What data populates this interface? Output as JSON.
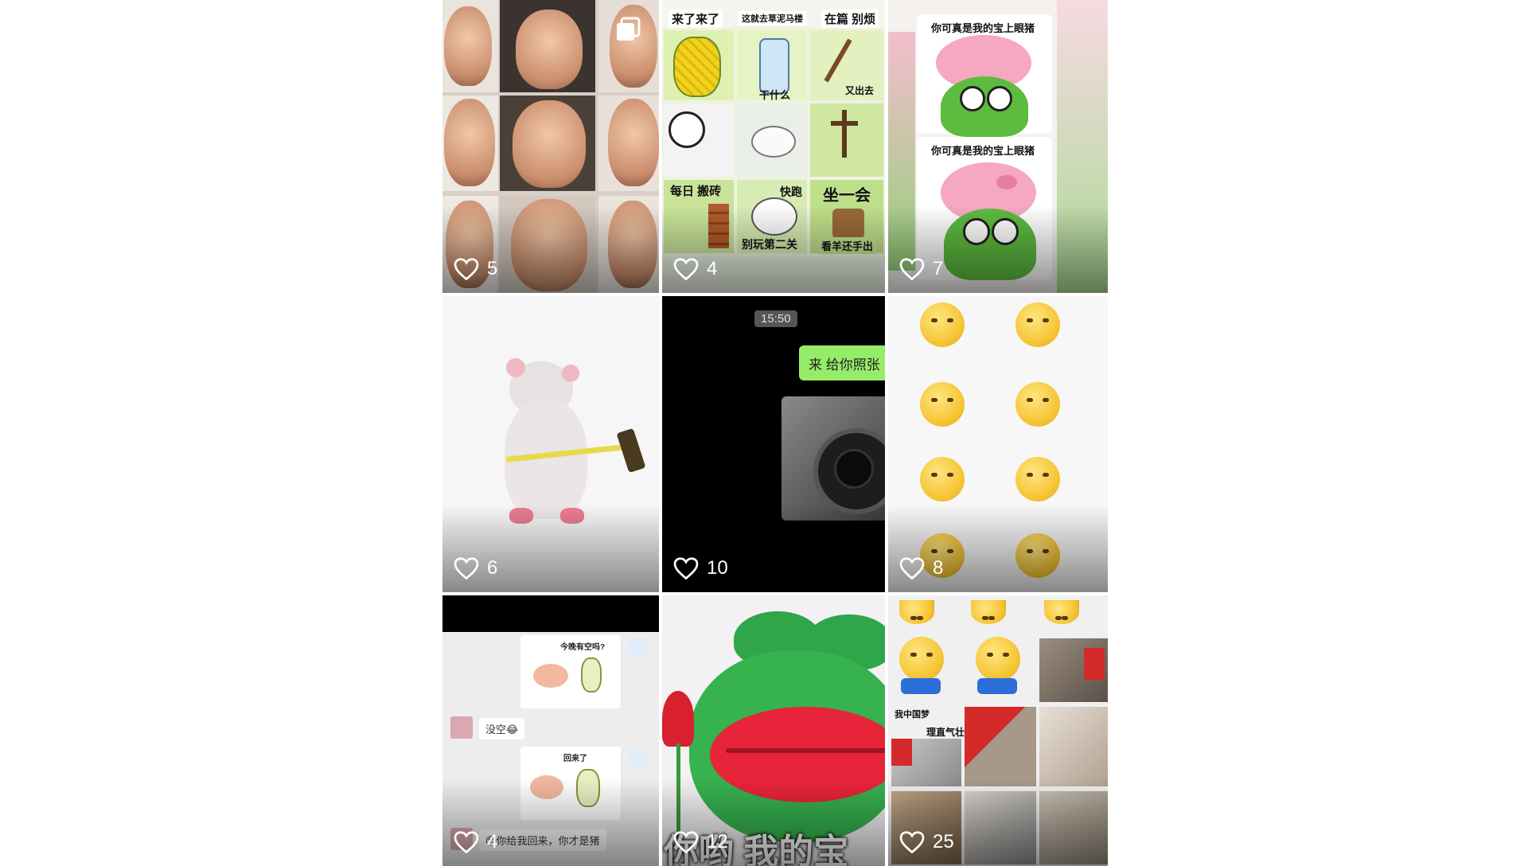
{
  "colors": {
    "heart": "#ffffff",
    "wechat_green": "#95ec69",
    "pig_pink": "#f5a8c0",
    "frog_green": "#5dbb3f",
    "emoji_yellow": "#f4c12d"
  },
  "tiles": [
    {
      "likes": "5",
      "multi_image": true
    },
    {
      "likes": "4",
      "captions": [
        "来了来了",
        "这就去草泥马楼",
        "在篇 别烦",
        "干什么",
        "又出去",
        "每日 搬砖",
        "快跑",
        "坐一会",
        "别玩第二关",
        "看羊还手出"
      ]
    },
    {
      "likes": "7",
      "captions": [
        "你可真是我的宝上眼猪",
        "你可真是我的宝上眼猪"
      ]
    },
    {
      "likes": "6"
    },
    {
      "likes": "10",
      "chat_time": "15:50",
      "chat_message": "来 给你照张"
    },
    {
      "likes": "8"
    },
    {
      "likes": "4",
      "chat_lines": [
        "今晚有空吗?",
        "没空😂",
        "回来了",
        "😊你给我回来，你才是猪"
      ]
    },
    {
      "likes": "12",
      "caption": "你哟 我的宝"
    },
    {
      "likes": "25",
      "captions": [
        "我中国梦",
        "理直气壮"
      ]
    }
  ],
  "icons": {
    "like": "heart-outline-icon",
    "multi": "multi-image-icon"
  }
}
